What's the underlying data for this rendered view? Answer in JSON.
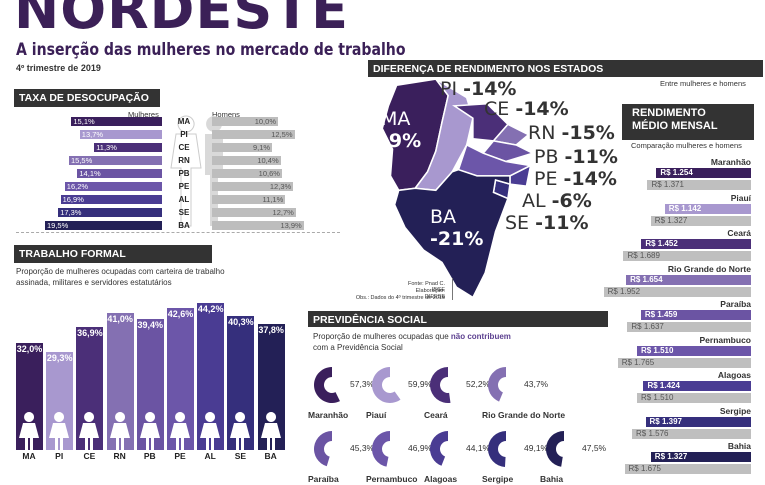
{
  "header": {
    "title": "NORDESTE",
    "subtitle": "A inserção das mulheres no mercado de trabalho",
    "period": "4º trimestre de 2019"
  },
  "unemployment": {
    "title": "TAXA DE DESOCUPAÇÃO",
    "legend_women": "Mulheres",
    "legend_men": "Homens"
  },
  "formal": {
    "title": "TRABALHO FORMAL",
    "description": "Proporção de mulheres ocupadas com carteira de trabalho assinada, militares e servidores estatutários"
  },
  "map": {
    "title": "DIFERENÇA DE RENDIMENTO NOS ESTADOS",
    "subtitle": "Entre mulheres e homens",
    "source_1": "Fonte: Pnad C. IBGE",
    "source_2": "Elaboração: DIEESE",
    "source_3": "Obs.: Dados do 4º trimestre de 2019"
  },
  "pension": {
    "title": "PREVIDÊNCIA SOCIAL",
    "description_a": "Proporção de mulheres ocupadas que",
    "description_b": "não contribuem",
    "description_c": "com a Previdência Social"
  },
  "income": {
    "title_1": "RENDIMENTO",
    "title_2": "MÉDIO MENSAL",
    "subtitle": "Comparação mulheres e homens"
  },
  "colors": {
    "dark": "#2e1a4f",
    "mid": "#5b3f8f",
    "light": "#a897cc",
    "grey": "#bdbdbd"
  },
  "chart_data": [
    {
      "type": "bar",
      "title": "TAXA DE DESOCUPAÇÃO",
      "categories": [
        "MA",
        "PI",
        "CE",
        "RN",
        "PB",
        "PE",
        "AL",
        "SE",
        "BA"
      ],
      "series": [
        {
          "name": "Mulheres",
          "values": [
            15.1,
            13.7,
            11.3,
            15.5,
            14.1,
            16.2,
            16.9,
            17.3,
            19.5
          ],
          "labels": [
            "15,1%",
            "13,7%",
            "11,3%",
            "15,5%",
            "14,1%",
            "16,2%",
            "16,9%",
            "17,3%",
            "19,5%"
          ]
        },
        {
          "name": "Homens",
          "values": [
            10.0,
            12.5,
            9.1,
            10.4,
            10.6,
            12.3,
            11.1,
            12.7,
            13.9
          ],
          "labels": [
            "10,0%",
            "12,5%",
            "9,1%",
            "10,4%",
            "10,6%",
            "12,3%",
            "11,1%",
            "12,7%",
            "13,9%"
          ]
        }
      ]
    },
    {
      "type": "bar",
      "title": "TRABALHO FORMAL",
      "categories": [
        "MA",
        "PI",
        "CE",
        "RN",
        "PB",
        "PE",
        "AL",
        "SE",
        "BA"
      ],
      "values": [
        32.0,
        29.3,
        36.9,
        41.0,
        39.4,
        42.6,
        44.2,
        40.3,
        37.8
      ],
      "labels": [
        "32,0%",
        "29,3%",
        "36,9%",
        "41,0%",
        "39,4%",
        "42,6%",
        "44,2%",
        "40,3%",
        "37,8%"
      ]
    },
    {
      "type": "pie",
      "title": "PREVIDÊNCIA SOCIAL",
      "categories": [
        "Maranhão",
        "Piauí",
        "Ceará",
        "Rio Grande do Norte",
        "Paraíba",
        "Pernambuco",
        "Alagoas",
        "Sergipe",
        "Bahia"
      ],
      "values": [
        57.3,
        59.9,
        52.2,
        43.7,
        45.3,
        46.9,
        44.1,
        49.1,
        47.5
      ],
      "labels": [
        "57,3%",
        "59,9%",
        "52,2%",
        "43,7%",
        "45,3%",
        "46,9%",
        "44,1%",
        "49,1%",
        "47,5%"
      ]
    },
    {
      "type": "bar",
      "title": "RENDIMENTO MÉDIO MENSAL",
      "categories": [
        "Maranhão",
        "Piauí",
        "Ceará",
        "Rio Grande do Norte",
        "Paraíba",
        "Pernambuco",
        "Alagoas",
        "Sergipe",
        "Bahia"
      ],
      "series": [
        {
          "name": "Mulheres",
          "values": [
            1254,
            1142,
            1452,
            1654,
            1459,
            1510,
            1424,
            1397,
            1327
          ],
          "labels": [
            "R$ 1.254",
            "R$ 1.142",
            "R$ 1.452",
            "R$ 1.654",
            "R$ 1.459",
            "R$ 1.510",
            "R$ 1.424",
            "R$ 1.397",
            "R$ 1.327"
          ]
        },
        {
          "name": "Homens",
          "values": [
            1371,
            1327,
            1689,
            1952,
            1637,
            1765,
            1510,
            1576,
            1675
          ],
          "labels": [
            "R$ 1.371",
            "R$ 1.327",
            "R$ 1.689",
            "R$ 1.952",
            "R$ 1.637",
            "R$ 1.765",
            "R$ 1.510",
            "R$ 1.576",
            "R$ 1.675"
          ]
        }
      ]
    },
    {
      "type": "map",
      "title": "DIFERENÇA DE RENDIMENTO NOS ESTADOS",
      "categories": [
        "MA",
        "PI",
        "CE",
        "RN",
        "PB",
        "PE",
        "AL",
        "SE",
        "BA"
      ],
      "values": [
        -9,
        -14,
        -14,
        -15,
        -11,
        -14,
        -6,
        -11,
        -21
      ],
      "labels": [
        "-9%",
        "-14%",
        "-14%",
        "-15%",
        "-11%",
        "-14%",
        "-6%",
        "-11%",
        "-21%"
      ]
    }
  ]
}
